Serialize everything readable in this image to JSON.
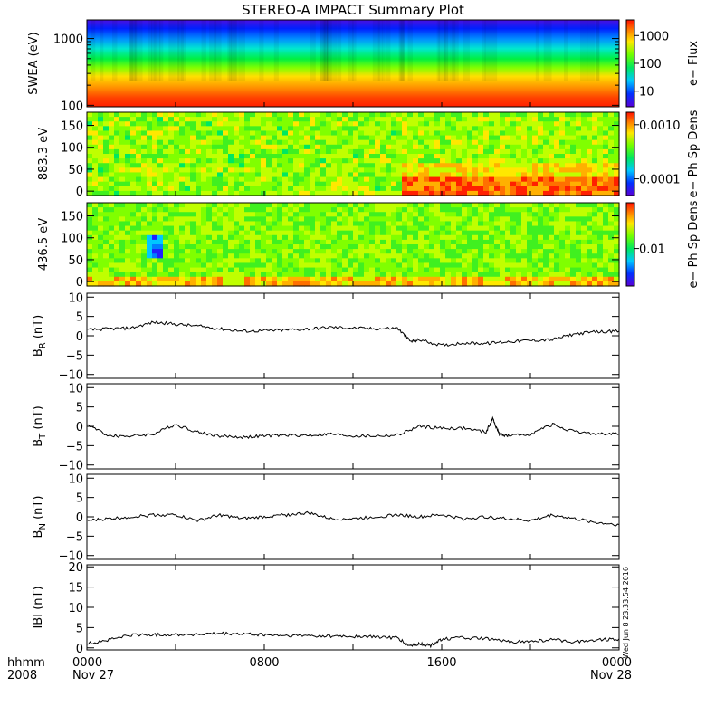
{
  "chart_data": [
    {
      "type": "heatmap",
      "title": "STEREO-A IMPACT Summary Plot",
      "ylabel": "SWEA (eV)",
      "ylim": [
        95,
        1900
      ],
      "yscale": "log",
      "yticks": [
        "100",
        "1000"
      ],
      "colorbar_label": "e− Flux",
      "colorbar_ticks": [
        "10",
        "100",
        "1000"
      ]
    },
    {
      "type": "heatmap",
      "ylabel": "883.3 eV",
      "ylim": [
        -10,
        180
      ],
      "yticks": [
        "0",
        "50",
        "100",
        "150"
      ],
      "colorbar_label": "e− Ph Sp Dens",
      "colorbar_ticks": [
        "0.0001",
        "0.0010"
      ]
    },
    {
      "type": "heatmap",
      "ylabel": "436.5 eV",
      "ylim": [
        -10,
        180
      ],
      "yticks": [
        "0",
        "50",
        "100",
        "150"
      ],
      "colorbar_label": "e− Ph Sp Dens",
      "colorbar_ticks": [
        "0.01"
      ]
    },
    {
      "type": "line",
      "ylabel": "B_R (nT)",
      "ylabel_main": "B",
      "ylabel_sub": "R",
      "ylabel_unit": " (nT)",
      "ylim": [
        -11,
        11
      ],
      "yticks": [
        "−10",
        "−5",
        "0",
        "5",
        "10"
      ],
      "x_hours": [
        0,
        1,
        2,
        3,
        4,
        5,
        6,
        7,
        8,
        9,
        10,
        11,
        12,
        13,
        14,
        14.6,
        15,
        16,
        17,
        18,
        19,
        20,
        21,
        22,
        23,
        24
      ],
      "values": [
        1.5,
        1.8,
        2.0,
        3.5,
        3.0,
        2.5,
        1.8,
        1.2,
        1.3,
        1.5,
        1.8,
        2.2,
        2.0,
        1.8,
        2.0,
        -1.5,
        -1.0,
        -2.5,
        -1.8,
        -2.0,
        -1.5,
        -1.2,
        -1.0,
        0.5,
        1.0,
        1.2
      ]
    },
    {
      "type": "line",
      "ylabel": "B_T (nT)",
      "ylabel_main": "B",
      "ylabel_sub": "T",
      "ylabel_unit": " (nT)",
      "ylim": [
        -11,
        11
      ],
      "yticks": [
        "−10",
        "−5",
        "0",
        "5",
        "10"
      ],
      "x_hours": [
        0,
        1,
        2,
        3,
        4,
        5,
        6,
        7,
        8,
        9,
        10,
        11,
        12,
        13,
        14,
        15,
        16,
        17,
        18,
        18.3,
        18.6,
        19,
        20,
        21,
        22,
        23,
        24
      ],
      "values": [
        0.5,
        -2.5,
        -2.5,
        -2.0,
        0.5,
        -1.5,
        -2.5,
        -2.8,
        -2.5,
        -2.3,
        -2.3,
        -2.0,
        -2.5,
        -2.5,
        -2.3,
        0.0,
        -0.5,
        -0.5,
        -1.5,
        2.0,
        -2.0,
        -2.5,
        -2.0,
        0.5,
        -1.5,
        -2.0,
        -2.0
      ]
    },
    {
      "type": "line",
      "ylabel": "B_N (nT)",
      "ylabel_main": "B",
      "ylabel_sub": "N",
      "ylabel_unit": " (nT)",
      "ylim": [
        -11,
        11
      ],
      "yticks": [
        "−10",
        "−5",
        "0",
        "5",
        "10"
      ],
      "x_hours": [
        0,
        1,
        2,
        3,
        4,
        5,
        6,
        7,
        8,
        9,
        10,
        11,
        12,
        13,
        14,
        15,
        16,
        17,
        18,
        19,
        20,
        21,
        22,
        23,
        24
      ],
      "values": [
        -1.0,
        -0.5,
        0.0,
        0.5,
        0.5,
        -1.0,
        0.5,
        -0.5,
        0.0,
        0.5,
        1.0,
        -0.5,
        -0.5,
        0.0,
        0.5,
        0.0,
        0.5,
        -0.5,
        0.0,
        -0.5,
        -1.0,
        0.5,
        -0.5,
        -1.5,
        -2.0
      ]
    },
    {
      "type": "line",
      "ylabel": "|B| (nT)",
      "ylabel_main": "IBI",
      "ylabel_sub": "",
      "ylabel_unit": " (nT)",
      "ylim": [
        -0.5,
        20.5
      ],
      "yticks": [
        "0",
        "5",
        "10",
        "15",
        "20"
      ],
      "x_hours": [
        0,
        1,
        2,
        3,
        4,
        5,
        6,
        7,
        8,
        9,
        10,
        11,
        12,
        13,
        14,
        14.5,
        15,
        15.5,
        16,
        17,
        18,
        19,
        20,
        21,
        22,
        23,
        24
      ],
      "values": [
        1.0,
        2.0,
        3.2,
        3.2,
        3.3,
        3.3,
        3.5,
        3.4,
        3.2,
        3.0,
        3.0,
        2.9,
        2.8,
        2.7,
        2.5,
        0.5,
        1.0,
        0.5,
        2.2,
        2.5,
        2.2,
        1.5,
        1.5,
        2.0,
        1.5,
        2.0,
        2.2
      ]
    }
  ],
  "x_axis": {
    "ticks": [
      "0000",
      "0800",
      "1600",
      "0000"
    ],
    "dates": [
      "Nov 27",
      "Nov 28"
    ],
    "label_line1": "hhmm",
    "label_line2": "2008",
    "xlim_hours": [
      0,
      24
    ]
  },
  "stamp": "Wed Jun  8 23:33:54 2016",
  "colors": {
    "line": "#000000",
    "frame": "#000000"
  }
}
